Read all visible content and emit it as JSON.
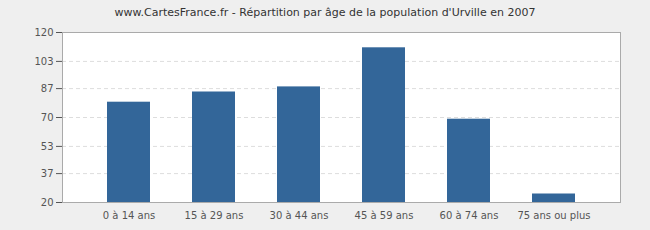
{
  "chart_data": {
    "type": "bar",
    "title": "www.CartesFrance.fr - Répartition par âge de la population d'Urville en 2007",
    "categories": [
      "0 à 14 ans",
      "15 à 29 ans",
      "30 à 44 ans",
      "45 à 59 ans",
      "60 à 74 ans",
      "75 ans ou plus"
    ],
    "values": [
      79,
      85,
      88,
      111,
      69,
      25
    ],
    "color": "#336699",
    "ylim": [
      20,
      120
    ],
    "yticks": [
      20,
      37,
      53,
      70,
      87,
      103,
      120
    ],
    "grid": true
  }
}
